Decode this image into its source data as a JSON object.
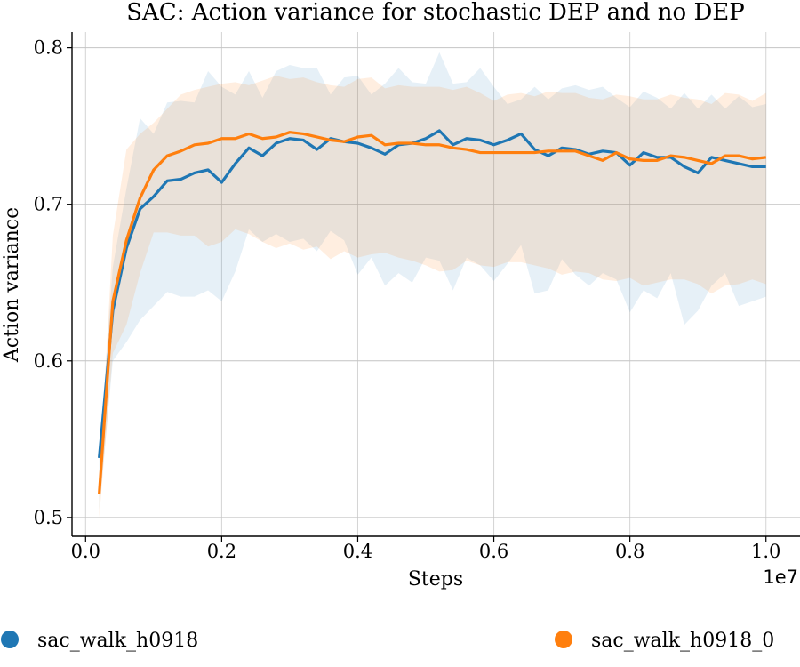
{
  "chart_data": {
    "type": "line",
    "title": "SAC: Action variance for stochastic DEP and no DEP",
    "xlabel": "Steps",
    "ylabel": "Action variance",
    "x_offset_label": "1e7",
    "xlim": [
      -0.02,
      1.05
    ],
    "ylim": [
      0.488,
      0.81
    ],
    "xticks": [
      0.0,
      0.2,
      0.4,
      0.6,
      0.8,
      1.0
    ],
    "xtick_labels": [
      "0.0",
      "0.2",
      "0.4",
      "0.6",
      "0.8",
      "1.0"
    ],
    "yticks": [
      0.5,
      0.6,
      0.7,
      0.8
    ],
    "ytick_labels": [
      "0.5",
      "0.6",
      "0.7",
      "0.8"
    ],
    "grid": true,
    "legend_position": "bottom",
    "x": [
      0.02,
      0.04,
      0.06,
      0.08,
      0.1,
      0.12,
      0.14,
      0.16,
      0.18,
      0.2,
      0.22,
      0.24,
      0.26,
      0.28,
      0.3,
      0.32,
      0.34,
      0.36,
      0.38,
      0.4,
      0.42,
      0.44,
      0.46,
      0.48,
      0.5,
      0.52,
      0.54,
      0.56,
      0.58,
      0.6,
      0.62,
      0.64,
      0.66,
      0.68,
      0.7,
      0.72,
      0.74,
      0.76,
      0.78,
      0.8,
      0.82,
      0.84,
      0.86,
      0.88,
      0.9,
      0.92,
      0.94,
      0.96,
      0.98,
      1.0
    ],
    "series": [
      {
        "name": "sac_walk_h0918",
        "color": "#1f77b4",
        "values": [
          0.538,
          0.632,
          0.672,
          0.697,
          0.705,
          0.715,
          0.716,
          0.72,
          0.722,
          0.714,
          0.726,
          0.736,
          0.731,
          0.739,
          0.742,
          0.741,
          0.735,
          0.742,
          0.74,
          0.739,
          0.736,
          0.732,
          0.738,
          0.739,
          0.742,
          0.747,
          0.738,
          0.742,
          0.741,
          0.738,
          0.741,
          0.745,
          0.735,
          0.731,
          0.736,
          0.735,
          0.732,
          0.734,
          0.733,
          0.725,
          0.733,
          0.73,
          0.73,
          0.724,
          0.72,
          0.73,
          0.728,
          0.726,
          0.724,
          0.724
        ],
        "upper": [
          0.54,
          0.66,
          0.71,
          0.755,
          0.745,
          0.765,
          0.766,
          0.765,
          0.785,
          0.775,
          0.77,
          0.785,
          0.768,
          0.785,
          0.789,
          0.787,
          0.787,
          0.77,
          0.781,
          0.782,
          0.77,
          0.777,
          0.787,
          0.778,
          0.777,
          0.797,
          0.777,
          0.778,
          0.787,
          0.775,
          0.764,
          0.767,
          0.775,
          0.767,
          0.774,
          0.776,
          0.773,
          0.775,
          0.768,
          0.762,
          0.772,
          0.768,
          0.761,
          0.771,
          0.761,
          0.77,
          0.761,
          0.769,
          0.762,
          0.764
        ],
        "lower": [
          0.505,
          0.6,
          0.612,
          0.626,
          0.635,
          0.644,
          0.641,
          0.641,
          0.645,
          0.638,
          0.657,
          0.684,
          0.676,
          0.681,
          0.676,
          0.678,
          0.67,
          0.683,
          0.677,
          0.655,
          0.666,
          0.648,
          0.656,
          0.65,
          0.666,
          0.664,
          0.645,
          0.666,
          0.661,
          0.651,
          0.662,
          0.674,
          0.643,
          0.645,
          0.665,
          0.655,
          0.648,
          0.656,
          0.652,
          0.631,
          0.645,
          0.64,
          0.656,
          0.623,
          0.632,
          0.648,
          0.656,
          0.635,
          0.638,
          0.641
        ]
      },
      {
        "name": "sac_walk_h0918_0",
        "color": "#ff7f0e",
        "values": [
          0.515,
          0.638,
          0.677,
          0.704,
          0.722,
          0.731,
          0.734,
          0.738,
          0.739,
          0.742,
          0.742,
          0.745,
          0.742,
          0.743,
          0.746,
          0.745,
          0.743,
          0.741,
          0.74,
          0.743,
          0.744,
          0.738,
          0.739,
          0.739,
          0.738,
          0.738,
          0.736,
          0.735,
          0.733,
          0.733,
          0.733,
          0.733,
          0.733,
          0.734,
          0.734,
          0.734,
          0.731,
          0.728,
          0.733,
          0.729,
          0.728,
          0.728,
          0.731,
          0.73,
          0.728,
          0.726,
          0.731,
          0.731,
          0.729,
          0.73
        ],
        "upper": [
          0.52,
          0.68,
          0.735,
          0.745,
          0.752,
          0.761,
          0.77,
          0.773,
          0.775,
          0.777,
          0.778,
          0.776,
          0.779,
          0.782,
          0.78,
          0.781,
          0.778,
          0.776,
          0.775,
          0.78,
          0.781,
          0.774,
          0.776,
          0.775,
          0.775,
          0.775,
          0.773,
          0.775,
          0.771,
          0.766,
          0.77,
          0.771,
          0.769,
          0.772,
          0.771,
          0.771,
          0.768,
          0.767,
          0.77,
          0.769,
          0.767,
          0.767,
          0.77,
          0.768,
          0.767,
          0.764,
          0.771,
          0.77,
          0.766,
          0.771
        ],
        "lower": [
          0.5,
          0.605,
          0.623,
          0.656,
          0.682,
          0.682,
          0.68,
          0.68,
          0.673,
          0.676,
          0.684,
          0.681,
          0.676,
          0.672,
          0.675,
          0.671,
          0.673,
          0.665,
          0.67,
          0.666,
          0.668,
          0.669,
          0.666,
          0.664,
          0.661,
          0.657,
          0.658,
          0.664,
          0.661,
          0.66,
          0.663,
          0.663,
          0.661,
          0.659,
          0.655,
          0.657,
          0.656,
          0.652,
          0.651,
          0.653,
          0.648,
          0.65,
          0.652,
          0.652,
          0.649,
          0.643,
          0.648,
          0.649,
          0.652,
          0.649
        ]
      }
    ]
  }
}
